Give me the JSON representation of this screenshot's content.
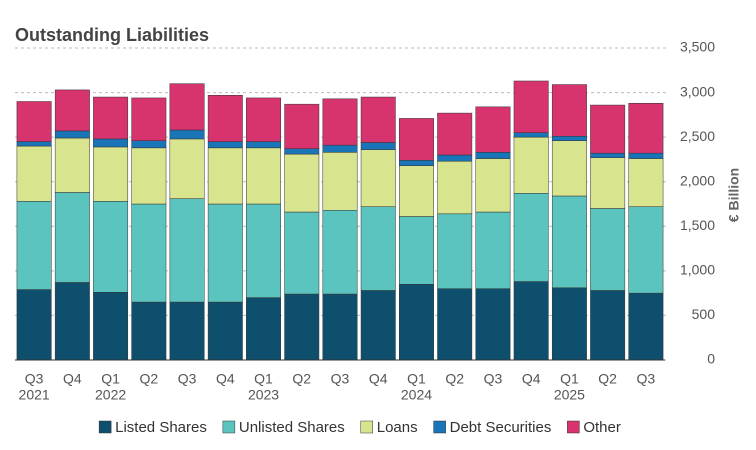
{
  "chart_data": {
    "type": "stacked_bar",
    "title": "Outstanding Liabilities",
    "y_label": "€ Billion",
    "categories": [
      [
        "Q3",
        "2021"
      ],
      [
        "Q4",
        null
      ],
      [
        "Q1",
        "2022"
      ],
      [
        "Q2",
        null
      ],
      [
        "Q3",
        null
      ],
      [
        "Q4",
        null
      ],
      [
        "Q1",
        "2023"
      ],
      [
        "Q2",
        null
      ],
      [
        "Q3",
        null
      ],
      [
        "Q4",
        null
      ],
      [
        "Q1",
        "2024"
      ],
      [
        "Q2",
        null
      ],
      [
        "Q3",
        null
      ],
      [
        "Q4",
        null
      ],
      [
        "Q1",
        "2025"
      ],
      [
        "Q2",
        null
      ],
      [
        "Q3",
        null
      ]
    ],
    "series": [
      {
        "name": "Listed Shares",
        "color": "#0d4f6c",
        "values": [
          790,
          870,
          760,
          650,
          650,
          650,
          700,
          740,
          740,
          780,
          850,
          800,
          800,
          880,
          810,
          780,
          750
        ]
      },
      {
        "name": "Unlisted Shares",
        "color": "#5bc4bf",
        "values": [
          990,
          1010,
          1020,
          1100,
          1160,
          1100,
          1050,
          920,
          940,
          940,
          760,
          840,
          860,
          990,
          1030,
          920,
          970
        ]
      },
      {
        "name": "Loans",
        "color": "#d8e48e",
        "values": [
          620,
          610,
          610,
          630,
          670,
          630,
          630,
          650,
          650,
          640,
          570,
          590,
          600,
          630,
          620,
          570,
          540
        ]
      },
      {
        "name": "Debt Securities",
        "color": "#1a74b8",
        "values": [
          50,
          80,
          90,
          80,
          100,
          70,
          70,
          60,
          80,
          80,
          60,
          70,
          70,
          50,
          50,
          50,
          60
        ]
      },
      {
        "name": "Other",
        "color": "#d6336f",
        "values": [
          450,
          460,
          470,
          480,
          520,
          520,
          490,
          500,
          520,
          510,
          470,
          470,
          510,
          580,
          580,
          540,
          560
        ]
      }
    ],
    "ylim": [
      0,
      3500
    ],
    "yticks": [
      0,
      500,
      {
        "value": 1000,
        "label": "1,000"
      },
      {
        "value": 1500,
        "label": "1,500"
      },
      {
        "value": 2000,
        "label": "2,000"
      },
      {
        "value": 2500,
        "label": "2,500"
      },
      {
        "value": 3000,
        "label": "3,000"
      },
      {
        "value": 3500,
        "label": "3,500"
      }
    ],
    "grid": true,
    "legend": "bottom"
  }
}
